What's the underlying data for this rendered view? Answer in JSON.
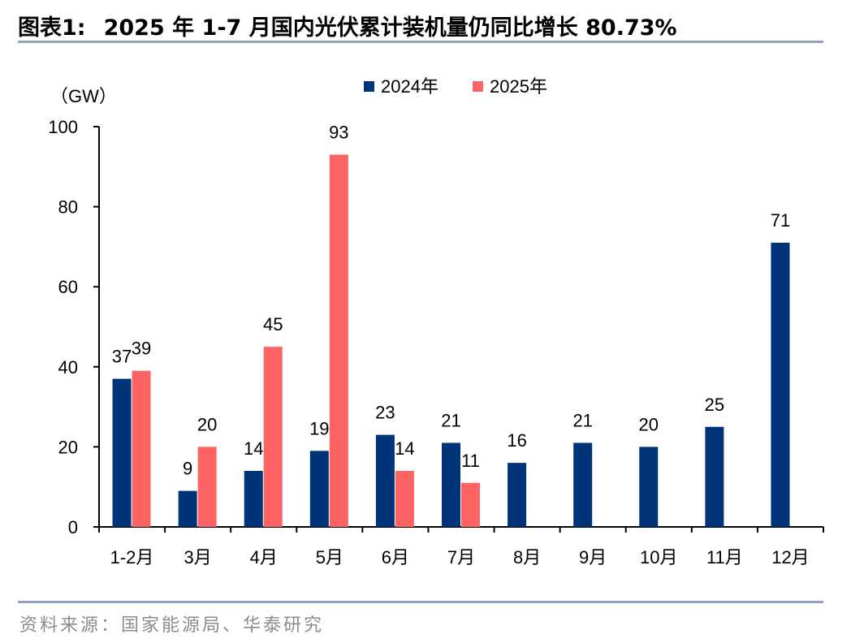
{
  "figure": {
    "label": "图表1:",
    "title": "2025 年 1-7 月国内光伏累计装机量仍同比增长 80.73%",
    "source": "资料来源：国家能源局、华泰研究"
  },
  "colors": {
    "series_2024": "#003478",
    "series_2025": "#ff6464",
    "rule": "#8ea2be"
  },
  "chart_data": {
    "type": "bar",
    "unit_label": "（GW）",
    "categories": [
      "1-2月",
      "3月",
      "4月",
      "5月",
      "6月",
      "7月",
      "8月",
      "9月",
      "10月",
      "11月",
      "12月"
    ],
    "series": [
      {
        "name": "2024年",
        "values": [
          37,
          9,
          14,
          19,
          23,
          21,
          16,
          21,
          20,
          25,
          71
        ]
      },
      {
        "name": "2025年",
        "values": [
          39,
          20,
          45,
          93,
          14,
          11,
          null,
          null,
          null,
          null,
          null
        ]
      }
    ],
    "ylim": [
      0,
      100
    ],
    "yticks": [
      0,
      20,
      40,
      60,
      80,
      100
    ],
    "legend_position": "top-center",
    "grid": false
  }
}
